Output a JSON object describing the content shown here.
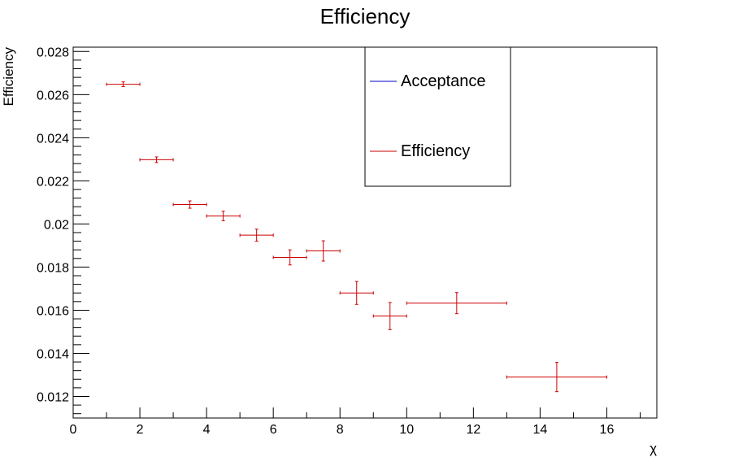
{
  "chart_data": {
    "type": "scatter",
    "title": "Efficiency",
    "xlabel": "χ",
    "ylabel": "Efficiency",
    "xlim": [
      0,
      17.5
    ],
    "ylim": [
      0.011,
      0.0282
    ],
    "x_ticks": [
      0,
      2,
      4,
      6,
      8,
      10,
      12,
      14,
      16
    ],
    "x_tick_labels": [
      "0",
      "2",
      "4",
      "6",
      "8",
      "10",
      "12",
      "14",
      "16"
    ],
    "y_ticks": [
      0.012,
      0.014,
      0.016,
      0.018,
      0.02,
      0.022,
      0.024,
      0.026,
      0.028
    ],
    "y_tick_labels": [
      "0.012",
      "0.014",
      "0.016",
      "0.018",
      "0.02",
      "0.022",
      "0.024",
      "0.026",
      "0.028"
    ],
    "legend": {
      "placement": "top-center",
      "entries": [
        {
          "label": "Acceptance",
          "color": "#0000cc"
        },
        {
          "label": "Efficiency",
          "color": "#cc0000"
        }
      ]
    },
    "series": [
      {
        "name": "Efficiency",
        "color": "#cc0000",
        "points": [
          {
            "x": 1.5,
            "xerr": 0.5,
            "y": 0.02648,
            "yerr": 0.00011
          },
          {
            "x": 2.5,
            "xerr": 0.5,
            "y": 0.02298,
            "yerr": 0.00013
          },
          {
            "x": 3.5,
            "xerr": 0.5,
            "y": 0.0209,
            "yerr": 0.00017
          },
          {
            "x": 4.5,
            "xerr": 0.5,
            "y": 0.02037,
            "yerr": 0.00022
          },
          {
            "x": 5.5,
            "xerr": 0.5,
            "y": 0.01948,
            "yerr": 0.00028
          },
          {
            "x": 6.5,
            "xerr": 0.5,
            "y": 0.01845,
            "yerr": 0.00035
          },
          {
            "x": 7.5,
            "xerr": 0.5,
            "y": 0.01875,
            "yerr": 0.00047
          },
          {
            "x": 8.5,
            "xerr": 0.5,
            "y": 0.0168,
            "yerr": 0.00053
          },
          {
            "x": 9.5,
            "xerr": 0.5,
            "y": 0.01573,
            "yerr": 0.00063
          },
          {
            "x": 11.5,
            "xerr": 1.5,
            "y": 0.01633,
            "yerr": 0.00049
          },
          {
            "x": 14.5,
            "xerr": 1.5,
            "y": 0.0129,
            "yerr": 0.00068
          }
        ]
      }
    ]
  }
}
